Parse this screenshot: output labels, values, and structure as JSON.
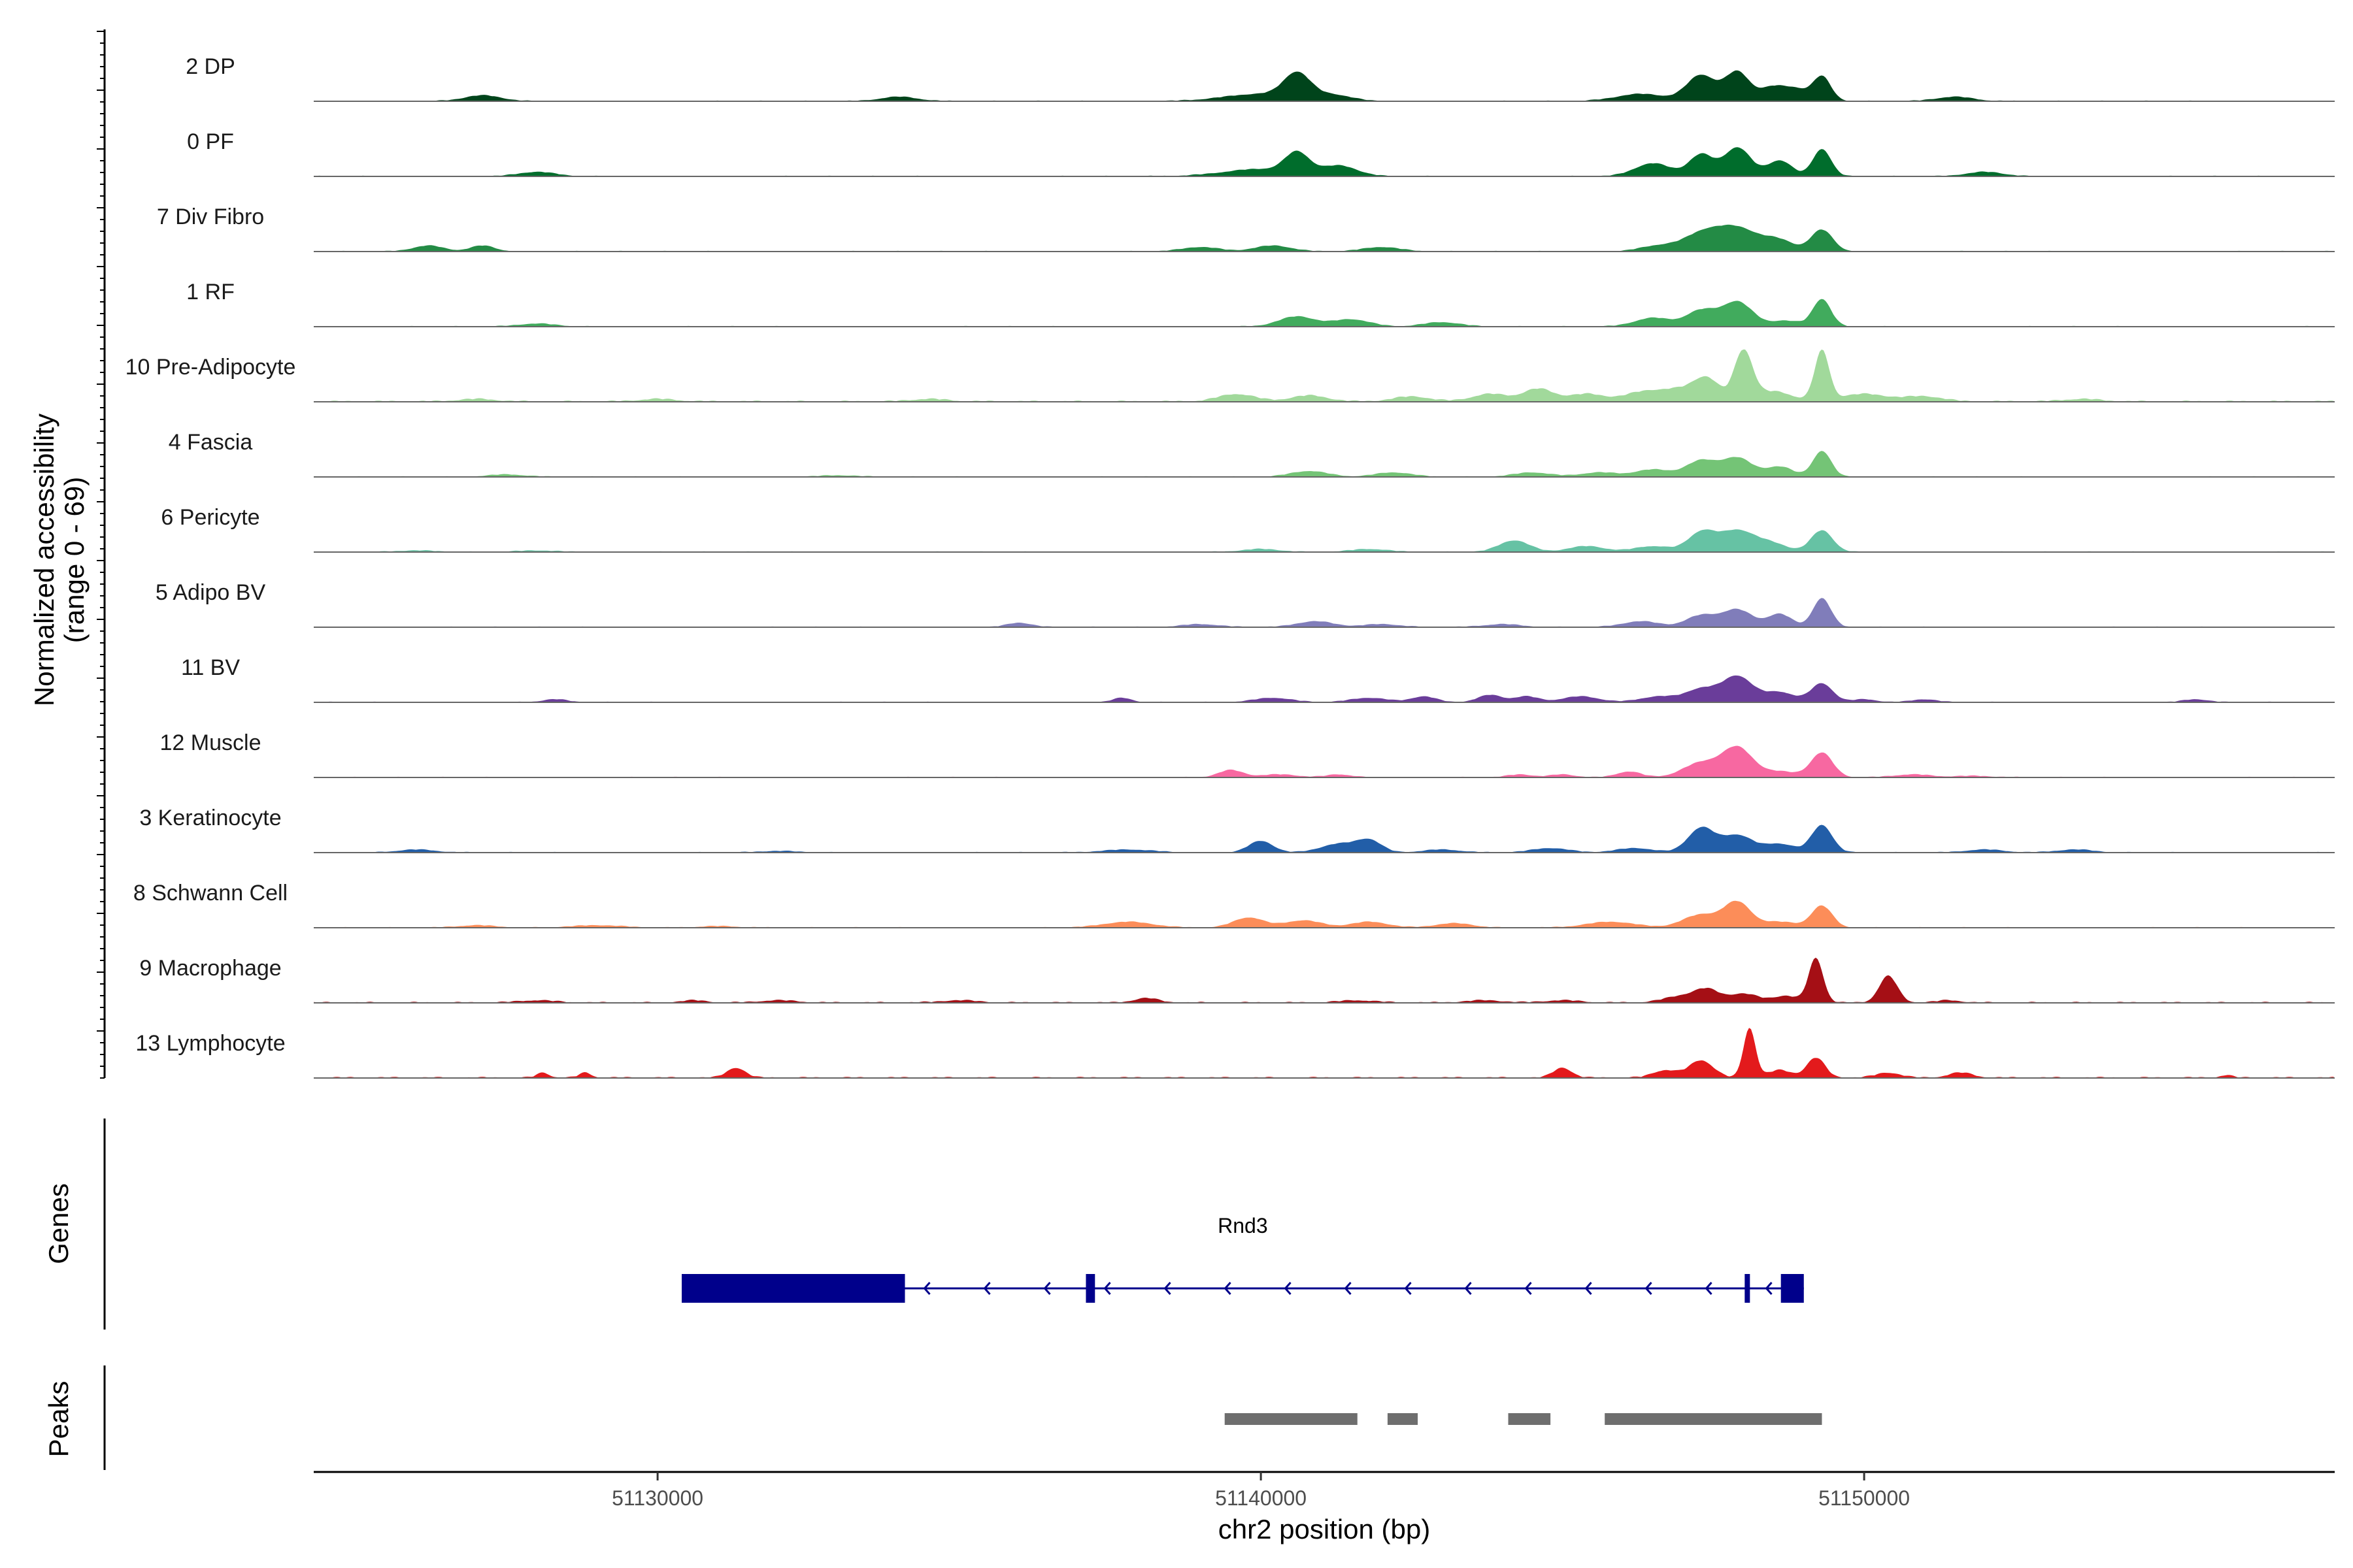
{
  "chart_data": {
    "type": "area",
    "x_label": "chr2 position (bp)",
    "y_label_line1": "Normalized accessibility",
    "y_label_line2": "(range 0 - 69)",
    "y_range": [
      0,
      69
    ],
    "x_range": [
      51124300,
      51157800
    ],
    "x_ticks": [
      51130000,
      51140000,
      51150000
    ],
    "x_tick_labels": [
      "51130000",
      "51140000",
      "51150000"
    ],
    "tracks": [
      {
        "label": "2 DP",
        "color": "#00441b",
        "amp": 0.55,
        "peaks": [
          [
            51127100,
            0.2,
            300
          ],
          [
            51134000,
            0.15,
            300
          ],
          [
            51140000,
            0.25,
            600
          ],
          [
            51140600,
            0.85,
            220
          ],
          [
            51141200,
            0.2,
            300
          ],
          [
            51146300,
            0.25,
            400
          ],
          [
            51147300,
            0.9,
            240
          ],
          [
            51147900,
            1.0,
            200
          ],
          [
            51148500,
            0.5,
            220
          ],
          [
            51148900,
            0.35,
            180
          ],
          [
            51149300,
            0.85,
            150
          ],
          [
            51151500,
            0.15,
            300
          ]
        ]
      },
      {
        "label": "0 PF",
        "color": "#006d2c",
        "amp": 0.55,
        "peaks": [
          [
            51128000,
            0.15,
            300
          ],
          [
            51140000,
            0.25,
            600
          ],
          [
            51140600,
            0.7,
            200
          ],
          [
            51141300,
            0.35,
            300
          ],
          [
            51146500,
            0.45,
            300
          ],
          [
            51147300,
            0.75,
            200
          ],
          [
            51147900,
            1.0,
            220
          ],
          [
            51148600,
            0.55,
            200
          ],
          [
            51149300,
            0.95,
            150
          ],
          [
            51152000,
            0.15,
            300
          ]
        ]
      },
      {
        "label": "7 Div Fibro",
        "color": "#238b45",
        "amp": 0.55,
        "peaks": [
          [
            51126200,
            0.2,
            250
          ],
          [
            51127100,
            0.2,
            200
          ],
          [
            51139000,
            0.15,
            300
          ],
          [
            51140200,
            0.2,
            300
          ],
          [
            51142000,
            0.15,
            300
          ],
          [
            51146600,
            0.2,
            300
          ],
          [
            51147300,
            0.55,
            300
          ],
          [
            51147900,
            0.8,
            350
          ],
          [
            51148600,
            0.35,
            250
          ],
          [
            51149300,
            0.75,
            180
          ]
        ]
      },
      {
        "label": "1 RF",
        "color": "#41ab5d",
        "amp": 0.55,
        "peaks": [
          [
            51128000,
            0.1,
            300
          ],
          [
            51140600,
            0.35,
            300
          ],
          [
            51141500,
            0.25,
            300
          ],
          [
            51143000,
            0.15,
            300
          ],
          [
            51146500,
            0.3,
            300
          ],
          [
            51147300,
            0.55,
            250
          ],
          [
            51147900,
            0.85,
            250
          ],
          [
            51148700,
            0.2,
            250
          ],
          [
            51149300,
            0.95,
            150
          ]
        ]
      },
      {
        "label": "10 Pre-Adipocyte",
        "color": "#a1d99b",
        "amp": 0.95,
        "peaks": [
          [
            51127000,
            0.05,
            300
          ],
          [
            51130000,
            0.05,
            300
          ],
          [
            51134500,
            0.05,
            300
          ],
          [
            51139600,
            0.15,
            300
          ],
          [
            51140800,
            0.12,
            300
          ],
          [
            51142500,
            0.1,
            300
          ],
          [
            51143800,
            0.15,
            300
          ],
          [
            51144600,
            0.25,
            250
          ],
          [
            51145400,
            0.15,
            300
          ],
          [
            51146300,
            0.15,
            300
          ],
          [
            51147000,
            0.25,
            400
          ],
          [
            51147400,
            0.35,
            200
          ],
          [
            51148000,
            1.0,
            150
          ],
          [
            51148500,
            0.2,
            300
          ],
          [
            51149300,
            1.0,
            120
          ],
          [
            51150000,
            0.15,
            400
          ],
          [
            51151000,
            0.1,
            300
          ],
          [
            51153600,
            0.05,
            300
          ]
        ]
      },
      {
        "label": "4 Fascia",
        "color": "#74c476",
        "amp": 0.55,
        "peaks": [
          [
            51127500,
            0.08,
            300
          ],
          [
            51133000,
            0.05,
            300
          ],
          [
            51140800,
            0.2,
            300
          ],
          [
            51142200,
            0.15,
            300
          ],
          [
            51144500,
            0.15,
            300
          ],
          [
            51145600,
            0.15,
            300
          ],
          [
            51146500,
            0.25,
            300
          ],
          [
            51147300,
            0.55,
            250
          ],
          [
            51147900,
            0.65,
            250
          ],
          [
            51148600,
            0.35,
            220
          ],
          [
            51149300,
            0.9,
            150
          ]
        ]
      },
      {
        "label": "6 Pericyte",
        "color": "#66c2a4",
        "amp": 0.55,
        "peaks": [
          [
            51126000,
            0.05,
            300
          ],
          [
            51128000,
            0.05,
            300
          ],
          [
            51140000,
            0.1,
            300
          ],
          [
            51141800,
            0.1,
            300
          ],
          [
            51144200,
            0.4,
            250
          ],
          [
            51145400,
            0.2,
            300
          ],
          [
            51146500,
            0.2,
            300
          ],
          [
            51147300,
            0.65,
            220
          ],
          [
            51147900,
            0.75,
            300
          ],
          [
            51148500,
            0.25,
            250
          ],
          [
            51149300,
            0.75,
            180
          ]
        ]
      },
      {
        "label": "5 Adipo BV",
        "color": "#807dba",
        "amp": 0.55,
        "peaks": [
          [
            51136000,
            0.15,
            200
          ],
          [
            51139000,
            0.1,
            300
          ],
          [
            51140900,
            0.2,
            300
          ],
          [
            51142000,
            0.1,
            300
          ],
          [
            51144000,
            0.1,
            300
          ],
          [
            51146300,
            0.2,
            300
          ],
          [
            51147300,
            0.4,
            250
          ],
          [
            51147900,
            0.6,
            250
          ],
          [
            51148600,
            0.45,
            200
          ],
          [
            51149300,
            1.0,
            150
          ]
        ]
      },
      {
        "label": "11 BV",
        "color": "#6a3d9a",
        "amp": 0.55,
        "peaks": [
          [
            51128300,
            0.1,
            200
          ],
          [
            51137700,
            0.15,
            150
          ],
          [
            51140200,
            0.15,
            300
          ],
          [
            51141800,
            0.15,
            300
          ],
          [
            51142700,
            0.2,
            200
          ],
          [
            51143800,
            0.25,
            200
          ],
          [
            51144400,
            0.2,
            200
          ],
          [
            51145300,
            0.2,
            300
          ],
          [
            51146600,
            0.2,
            300
          ],
          [
            51147300,
            0.45,
            250
          ],
          [
            51147900,
            0.9,
            250
          ],
          [
            51148600,
            0.35,
            250
          ],
          [
            51149300,
            0.65,
            180
          ],
          [
            51150000,
            0.1,
            200
          ],
          [
            51151000,
            0.1,
            200
          ],
          [
            51155500,
            0.1,
            200
          ]
        ]
      },
      {
        "label": "12 Muscle",
        "color": "#f768a1",
        "amp": 0.55,
        "peaks": [
          [
            51139500,
            0.25,
            200
          ],
          [
            51140300,
            0.1,
            300
          ],
          [
            51141300,
            0.1,
            200
          ],
          [
            51144300,
            0.1,
            200
          ],
          [
            51145000,
            0.1,
            200
          ],
          [
            51146100,
            0.2,
            200
          ],
          [
            51147300,
            0.5,
            300
          ],
          [
            51147900,
            1.0,
            250
          ],
          [
            51148600,
            0.2,
            300
          ],
          [
            51149300,
            0.85,
            180
          ],
          [
            51150800,
            0.1,
            300
          ],
          [
            51151800,
            0.05,
            300
          ]
        ]
      },
      {
        "label": "3 Keratinocyte",
        "color": "#225ea8",
        "amp": 0.55,
        "peaks": [
          [
            51126000,
            0.1,
            300
          ],
          [
            51132000,
            0.05,
            300
          ],
          [
            51137800,
            0.1,
            400
          ],
          [
            51140000,
            0.4,
            200
          ],
          [
            51141300,
            0.3,
            300
          ],
          [
            51141800,
            0.4,
            200
          ],
          [
            51143000,
            0.1,
            300
          ],
          [
            51144800,
            0.15,
            300
          ],
          [
            51146200,
            0.15,
            300
          ],
          [
            51147300,
            0.85,
            220
          ],
          [
            51147900,
            0.6,
            250
          ],
          [
            51148600,
            0.3,
            250
          ],
          [
            51149300,
            0.95,
            170
          ],
          [
            51152000,
            0.1,
            300
          ],
          [
            51153500,
            0.1,
            300
          ]
        ]
      },
      {
        "label": "8 Schwann Cell",
        "color": "#fc8d59",
        "amp": 0.55,
        "peaks": [
          [
            51127000,
            0.08,
            300
          ],
          [
            51129000,
            0.08,
            400
          ],
          [
            51131000,
            0.05,
            300
          ],
          [
            51137800,
            0.2,
            400
          ],
          [
            51139800,
            0.35,
            250
          ],
          [
            51140700,
            0.25,
            300
          ],
          [
            51141800,
            0.2,
            300
          ],
          [
            51143200,
            0.15,
            300
          ],
          [
            51145800,
            0.2,
            400
          ],
          [
            51147300,
            0.45,
            300
          ],
          [
            51147900,
            0.85,
            220
          ],
          [
            51148600,
            0.2,
            300
          ],
          [
            51149300,
            0.75,
            170
          ]
        ]
      },
      {
        "label": "9 Macrophage",
        "color": "#a50f15",
        "amp": 0.85,
        "peaks": [
          [
            51128000,
            0.05,
            300
          ],
          [
            51130600,
            0.05,
            200
          ],
          [
            51132000,
            0.05,
            300
          ],
          [
            51135000,
            0.05,
            300
          ],
          [
            51138100,
            0.1,
            200
          ],
          [
            51141600,
            0.05,
            300
          ],
          [
            51143700,
            0.05,
            300
          ],
          [
            51145000,
            0.05,
            300
          ],
          [
            51147000,
            0.15,
            300
          ],
          [
            51147400,
            0.25,
            200
          ],
          [
            51148000,
            0.2,
            250
          ],
          [
            51148700,
            0.15,
            200
          ],
          [
            51149200,
            1.0,
            120
          ],
          [
            51150400,
            0.6,
            150
          ],
          [
            51151400,
            0.05,
            200
          ]
        ]
      },
      {
        "label": "13 Lymphocyte",
        "color": "#e31a1c",
        "amp": 0.95,
        "peaks": [
          [
            51128100,
            0.1,
            100
          ],
          [
            51128800,
            0.1,
            100
          ],
          [
            51131300,
            0.2,
            150
          ],
          [
            51145000,
            0.2,
            150
          ],
          [
            51146700,
            0.15,
            200
          ],
          [
            51147300,
            0.35,
            200
          ],
          [
            51148100,
            1.0,
            100
          ],
          [
            51148600,
            0.15,
            200
          ],
          [
            51149200,
            0.4,
            150
          ],
          [
            51150400,
            0.1,
            200
          ],
          [
            51151600,
            0.1,
            200
          ],
          [
            51156000,
            0.05,
            100
          ]
        ]
      }
    ],
    "genes": [
      {
        "name": "Rnd3",
        "strand": "-",
        "start": 51130400,
        "end": 51149000,
        "exons": [
          [
            51130400,
            51134100
          ],
          [
            51137100,
            51137250
          ],
          [
            51148020,
            51148080
          ],
          [
            51148620,
            51149000
          ]
        ]
      }
    ],
    "peaks_track": [
      [
        51139400,
        51141600
      ],
      [
        51142100,
        51142600
      ],
      [
        51144100,
        51144800
      ],
      [
        51145700,
        51149300
      ]
    ]
  },
  "labels": {
    "genes_track": "Genes",
    "peaks_track": "Peaks"
  }
}
